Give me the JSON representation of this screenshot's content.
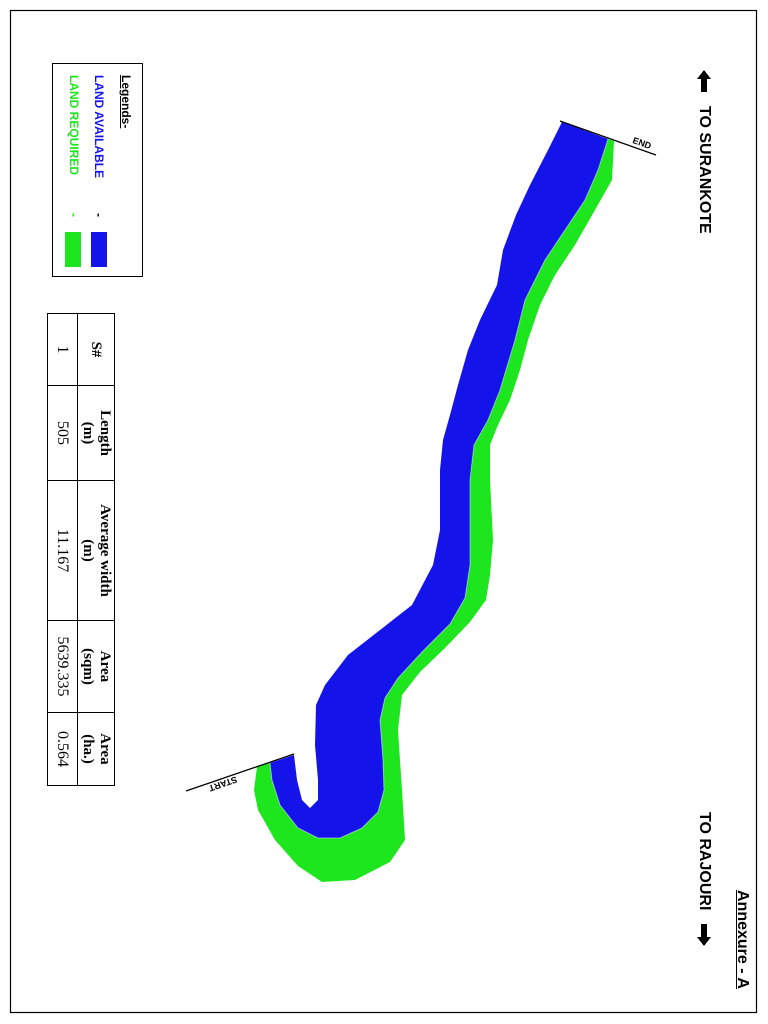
{
  "annexure": {
    "title": "Annexure - A"
  },
  "directions": [
    {
      "label": "TO SURANKOTE",
      "icon": "arrow-up-icon"
    },
    {
      "label": "TO RAJOURI",
      "icon": "arrow-down-icon"
    }
  ],
  "legend": {
    "title": "Legends-",
    "items": [
      {
        "label": "LAND AVAILABLE",
        "separator": "-",
        "color": "#1414ea",
        "separator_color": "#000000"
      },
      {
        "label": "LAND REQUIRED",
        "separator": "-",
        "color": "#1ee61e",
        "separator_color": "#1ee61e"
      }
    ]
  },
  "table": {
    "headers": [
      [
        "S#"
      ],
      [
        "Length",
        "(m)"
      ],
      [
        "Average width",
        "(m)"
      ],
      [
        "Area",
        "(sqm)"
      ],
      [
        "Area",
        "(ha.)"
      ]
    ],
    "rows": [
      [
        "1",
        "505",
        "11.167",
        "5639.335",
        "0.564"
      ]
    ]
  },
  "map": {
    "start_label": "START",
    "end_label": "END"
  }
}
